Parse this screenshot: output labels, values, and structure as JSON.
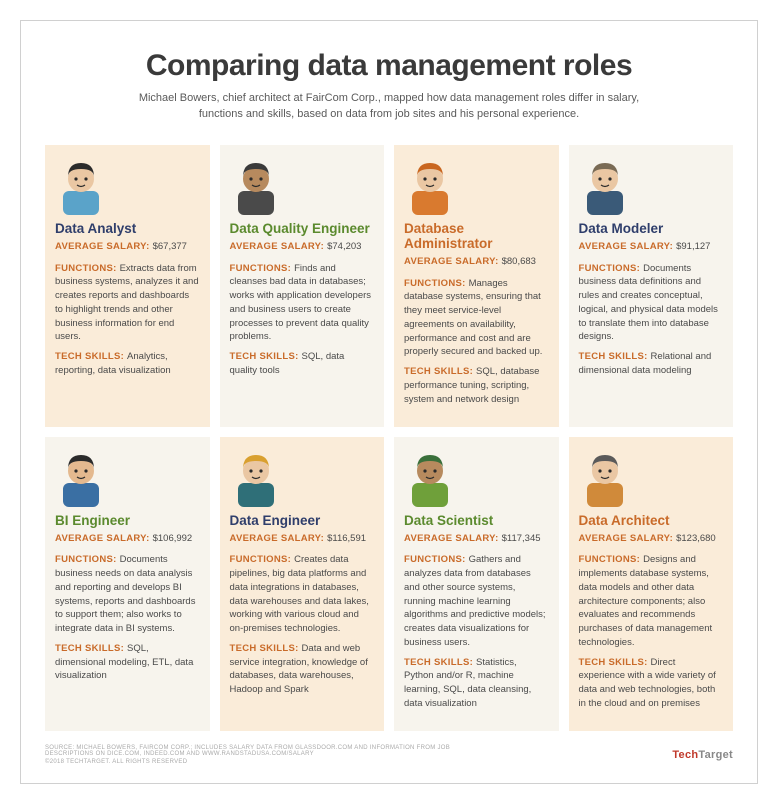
{
  "header": {
    "title": "Comparing data management roles",
    "subtitle": "Michael Bowers, chief architect at FairCom Corp., mapped how data management roles differ in salary, functions and skills, based on data from job sites and his personal experience."
  },
  "labels": {
    "salary": "AVERAGE SALARY:",
    "functions": "FUNCTIONS:",
    "skills": "TECH SKILLS:"
  },
  "style": {
    "title_color": "#3a3a3a",
    "label_color": "#c96b2a",
    "role_colors": {
      "navy": "#2f3e6b",
      "green": "#5b8a2e",
      "orange": "#c96b2a"
    },
    "card_bg": {
      "a": "#faecd9",
      "b": "#f7f4ed"
    },
    "grid_cols": 4,
    "fonts": {
      "title_pt": 30,
      "role_pt": 13.5,
      "body_pt": 9.5,
      "subtitle_pt": 11
    }
  },
  "avatars": [
    {
      "hair": "#2b2b2b",
      "skin": "#eac7a3",
      "shirt": "#5aa3c9"
    },
    {
      "hair": "#3a3a3a",
      "skin": "#b78a5e",
      "shirt": "#4a4a4a"
    },
    {
      "hair": "#c9661f",
      "skin": "#eac7a3",
      "shirt": "#d97a2f"
    },
    {
      "hair": "#7a6b55",
      "skin": "#eac7a3",
      "shirt": "#3a5a78"
    },
    {
      "hair": "#2b2b2b",
      "skin": "#e4b98f",
      "shirt": "#3a6fa3"
    },
    {
      "hair": "#d9a02f",
      "skin": "#eac7a3",
      "shirt": "#2f6f78"
    },
    {
      "hair": "#3a6f3a",
      "skin": "#b78a5e",
      "shirt": "#6fa03a"
    },
    {
      "hair": "#5a5a5a",
      "skin": "#eac7a3",
      "shirt": "#d08a3a"
    }
  ],
  "roles": [
    {
      "name": "Data Analyst",
      "color": "navy",
      "bg": "a",
      "salary": "$67,377",
      "functions": "Extracts data from business systems, analyzes it and creates reports and dashboards to highlight trends and other business information for end users.",
      "skills": "Analytics, reporting, data visualization"
    },
    {
      "name": "Data Quality Engineer",
      "color": "green",
      "bg": "b",
      "salary": "$74,203",
      "functions": "Finds and cleanses bad data in databases; works with application developers and business users to create processes to prevent data quality problems.",
      "skills": "SQL, data quality tools"
    },
    {
      "name": "Database Administrator",
      "color": "orange",
      "bg": "a",
      "salary": "$80,683",
      "functions": "Manages database systems, ensuring that they meet service-level agreements on availability, performance and cost and are properly secured and backed up.",
      "skills": "SQL, database performance tuning, scripting, system and network design"
    },
    {
      "name": "Data Modeler",
      "color": "navy",
      "bg": "b",
      "salary": "$91,127",
      "functions": "Documents business data definitions and rules and creates conceptual, logical, and physical data models to translate them into database designs.",
      "skills": "Relational and dimensional data modeling"
    },
    {
      "name": "BI Engineer",
      "color": "green",
      "bg": "b",
      "salary": "$106,992",
      "functions": "Documents business needs on data analysis and reporting and develops BI systems, reports and dashboards to support them; also works to integrate data in BI systems.",
      "skills": "SQL, dimensional modeling, ETL, data visualization"
    },
    {
      "name": "Data Engineer",
      "color": "navy",
      "bg": "a",
      "salary": "$116,591",
      "functions": "Creates data pipelines, big data platforms and data integrations in databases, data warehouses and data lakes, working with various cloud and on-premises technologies.",
      "skills": "Data and web service integration, knowledge of databases, data warehouses, Hadoop and Spark"
    },
    {
      "name": "Data Scientist",
      "color": "green",
      "bg": "b",
      "salary": "$117,345",
      "functions": "Gathers and analyzes data from databases and other source systems, running machine learning algorithms and predictive models; creates data visualizations for business users.",
      "skills": "Statistics, Python and/or R, machine learning, SQL, data cleansing, data visualization"
    },
    {
      "name": "Data Architect",
      "color": "orange",
      "bg": "a",
      "salary": "$123,680",
      "functions": "Designs and implements database systems, data models and other data architecture components; also evaluates and recommends purchases of data management technologies.",
      "skills": "Direct experience with a wide variety of data and web technologies, both in the cloud and on premises"
    }
  ],
  "footer": {
    "source": "SOURCE: MICHAEL BOWERS, FAIRCOM CORP.; INCLUDES SALARY DATA FROM GLASSDOOR.COM AND INFORMATION FROM JOB DESCRIPTIONS ON DICE.COM, INDEED.COM AND WWW.RANDSTADUSA.COM/SALARY",
    "copyright": "©2018 TECHTARGET. ALL RIGHTS RESERVED",
    "brand_a": "Tech",
    "brand_b": "Target"
  }
}
